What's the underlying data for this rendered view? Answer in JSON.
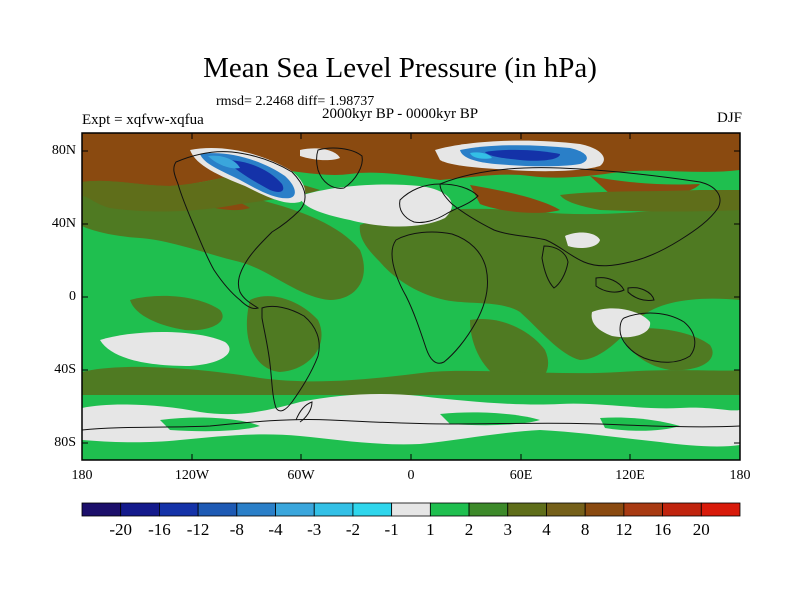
{
  "title": "Mean Sea Level Pressure (in hPa)",
  "stats": "rmsd= 2.2468 diff= 1.98737",
  "expt": "Expt = xqfvw-xqfua",
  "period": "2000kyr BP - 0000kyr BP",
  "season": "DJF",
  "lat_labels": [
    "80N",
    "40N",
    "0",
    "40S",
    "80S"
  ],
  "lon_labels": [
    "180",
    "120W",
    "60W",
    "0",
    "60E",
    "120E",
    "180"
  ],
  "colorbar": {
    "labels": [
      "-20",
      "-16",
      "-12",
      "-8",
      "-4",
      "-3",
      "-2",
      "-1",
      "1",
      "2",
      "3",
      "4",
      "8",
      "12",
      "16",
      "20"
    ],
    "colors": [
      "#1c0f6b",
      "#141a8c",
      "#1432a8",
      "#1e5ab4",
      "#2a7fc8",
      "#3aa6dc",
      "#33c0e6",
      "#2fd6ec",
      "#e6e6e6",
      "#1fbf4f",
      "#3d8a2a",
      "#5f6e1a",
      "#75601a",
      "#8a4a10",
      "#a83a12",
      "#c0240e",
      "#d81a0a"
    ]
  },
  "colors": {
    "background_field": "#1fbf4f",
    "positive_low": "#5f6e1a",
    "positive_mid": "#8a4a10",
    "near_zero": "#e6e6e6",
    "negative": "#1e5ab4"
  }
}
